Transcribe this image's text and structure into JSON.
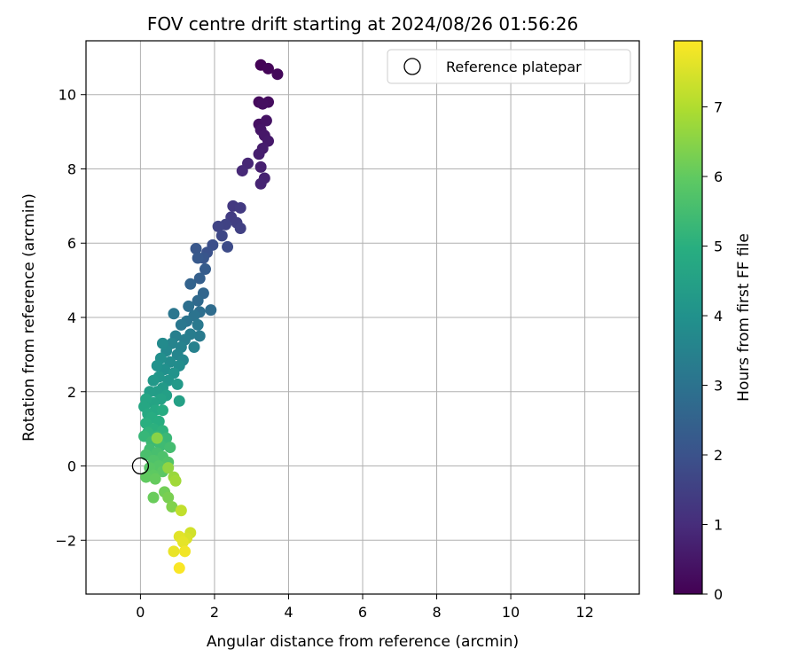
{
  "chart_data": {
    "type": "scatter",
    "title": "FOV centre drift starting at 2024/08/26 01:56:26",
    "xlabel": "Angular distance from reference (arcmin)",
    "ylabel": "Rotation from reference (arcmin)",
    "xlim": [
      -1.47,
      13.47
    ],
    "ylim": [
      -3.45,
      11.45
    ],
    "xticks": [
      0,
      2,
      4,
      6,
      8,
      10,
      12
    ],
    "yticks": [
      -2,
      0,
      2,
      4,
      6,
      8,
      10
    ],
    "xtick_labels": [
      "0",
      "2",
      "4",
      "6",
      "8",
      "10",
      "12"
    ],
    "ytick_labels": [
      "−2",
      "0",
      "2",
      "4",
      "6",
      "8",
      "10"
    ],
    "grid": true,
    "legend": {
      "placement": "top-right",
      "entries": [
        "Reference platepar"
      ]
    },
    "colorbar": {
      "label": "Hours from first FF file",
      "range": [
        0,
        7.95
      ],
      "ticks": [
        0,
        1,
        2,
        3,
        4,
        5,
        6,
        7
      ],
      "tick_labels": [
        "0",
        "1",
        "2",
        "3",
        "4",
        "5",
        "6",
        "7"
      ],
      "colormap": "viridis"
    },
    "reference_point": {
      "name": "Reference platepar",
      "x": 0,
      "y": 0
    },
    "series": [
      {
        "colored_by": "Hours from first FF file",
        "points": [
          {
            "x": 3.25,
            "y": 10.8,
            "c": 0.05
          },
          {
            "x": 3.45,
            "y": 10.7,
            "c": 0.1
          },
          {
            "x": 3.7,
            "y": 10.55,
            "c": 0.15
          },
          {
            "x": 3.2,
            "y": 9.8,
            "c": 0.2
          },
          {
            "x": 3.45,
            "y": 9.8,
            "c": 0.25
          },
          {
            "x": 3.3,
            "y": 9.75,
            "c": 0.3
          },
          {
            "x": 3.2,
            "y": 9.2,
            "c": 0.35
          },
          {
            "x": 3.4,
            "y": 9.3,
            "c": 0.4
          },
          {
            "x": 3.25,
            "y": 9.05,
            "c": 0.45
          },
          {
            "x": 3.35,
            "y": 8.9,
            "c": 0.5
          },
          {
            "x": 3.45,
            "y": 8.75,
            "c": 0.55
          },
          {
            "x": 3.3,
            "y": 8.55,
            "c": 0.6
          },
          {
            "x": 3.2,
            "y": 8.4,
            "c": 0.65
          },
          {
            "x": 3.25,
            "y": 8.05,
            "c": 0.7
          },
          {
            "x": 3.35,
            "y": 7.75,
            "c": 0.75
          },
          {
            "x": 3.25,
            "y": 7.6,
            "c": 0.8
          },
          {
            "x": 2.9,
            "y": 8.15,
            "c": 0.85
          },
          {
            "x": 2.75,
            "y": 7.95,
            "c": 0.9
          },
          {
            "x": 2.5,
            "y": 7.0,
            "c": 1.3
          },
          {
            "x": 2.7,
            "y": 6.95,
            "c": 1.35
          },
          {
            "x": 2.45,
            "y": 6.7,
            "c": 1.4
          },
          {
            "x": 2.6,
            "y": 6.55,
            "c": 1.45
          },
          {
            "x": 2.7,
            "y": 6.4,
            "c": 1.5
          },
          {
            "x": 2.3,
            "y": 6.5,
            "c": 1.55
          },
          {
            "x": 2.1,
            "y": 6.45,
            "c": 1.6
          },
          {
            "x": 2.2,
            "y": 6.2,
            "c": 1.7
          },
          {
            "x": 2.35,
            "y": 5.9,
            "c": 1.8
          },
          {
            "x": 1.95,
            "y": 5.95,
            "c": 1.9
          },
          {
            "x": 1.8,
            "y": 5.75,
            "c": 2.0
          },
          {
            "x": 1.7,
            "y": 5.6,
            "c": 2.1
          },
          {
            "x": 1.5,
            "y": 5.85,
            "c": 2.15
          },
          {
            "x": 1.55,
            "y": 5.6,
            "c": 2.2
          },
          {
            "x": 1.75,
            "y": 5.3,
            "c": 2.3
          },
          {
            "x": 1.6,
            "y": 5.05,
            "c": 2.4
          },
          {
            "x": 1.35,
            "y": 4.9,
            "c": 2.5
          },
          {
            "x": 1.7,
            "y": 4.65,
            "c": 2.6
          },
          {
            "x": 1.55,
            "y": 4.45,
            "c": 2.7
          },
          {
            "x": 1.9,
            "y": 4.2,
            "c": 2.8
          },
          {
            "x": 1.6,
            "y": 4.15,
            "c": 2.85
          },
          {
            "x": 1.3,
            "y": 4.3,
            "c": 2.9
          },
          {
            "x": 1.45,
            "y": 4.05,
            "c": 3.0
          },
          {
            "x": 1.25,
            "y": 3.9,
            "c": 3.05
          },
          {
            "x": 0.9,
            "y": 4.1,
            "c": 3.1
          },
          {
            "x": 1.1,
            "y": 3.8,
            "c": 3.15
          },
          {
            "x": 1.55,
            "y": 3.8,
            "c": 3.2
          },
          {
            "x": 1.6,
            "y": 3.5,
            "c": 3.25
          },
          {
            "x": 1.35,
            "y": 3.55,
            "c": 3.3
          },
          {
            "x": 1.2,
            "y": 3.4,
            "c": 3.35
          },
          {
            "x": 0.95,
            "y": 3.5,
            "c": 3.4
          },
          {
            "x": 1.45,
            "y": 3.2,
            "c": 3.45
          },
          {
            "x": 1.1,
            "y": 3.2,
            "c": 3.5
          },
          {
            "x": 0.85,
            "y": 3.3,
            "c": 3.55
          },
          {
            "x": 1.0,
            "y": 3.0,
            "c": 3.6
          },
          {
            "x": 1.15,
            "y": 2.85,
            "c": 3.65
          },
          {
            "x": 0.7,
            "y": 3.1,
            "c": 3.7
          },
          {
            "x": 0.6,
            "y": 3.3,
            "c": 3.75
          },
          {
            "x": 0.8,
            "y": 2.8,
            "c": 3.8
          },
          {
            "x": 1.05,
            "y": 2.7,
            "c": 3.85
          },
          {
            "x": 0.55,
            "y": 2.9,
            "c": 3.9
          },
          {
            "x": 0.65,
            "y": 2.6,
            "c": 3.95
          },
          {
            "x": 0.45,
            "y": 2.7,
            "c": 4.0
          },
          {
            "x": 0.9,
            "y": 2.5,
            "c": 4.05
          },
          {
            "x": 0.75,
            "y": 2.3,
            "c": 4.1
          },
          {
            "x": 0.5,
            "y": 2.4,
            "c": 4.15
          },
          {
            "x": 0.35,
            "y": 2.3,
            "c": 4.2
          },
          {
            "x": 1.0,
            "y": 2.2,
            "c": 4.25
          },
          {
            "x": 0.6,
            "y": 2.1,
            "c": 4.3
          },
          {
            "x": 0.45,
            "y": 2.0,
            "c": 4.35
          },
          {
            "x": 0.25,
            "y": 2.0,
            "c": 4.4
          },
          {
            "x": 0.7,
            "y": 1.9,
            "c": 4.45
          },
          {
            "x": 1.05,
            "y": 1.75,
            "c": 4.5
          },
          {
            "x": 0.55,
            "y": 1.8,
            "c": 4.55
          },
          {
            "x": 0.35,
            "y": 1.7,
            "c": 4.6
          },
          {
            "x": 0.15,
            "y": 1.8,
            "c": 4.65
          },
          {
            "x": 0.1,
            "y": 1.6,
            "c": 4.7
          },
          {
            "x": 0.4,
            "y": 1.5,
            "c": 4.75
          },
          {
            "x": 0.2,
            "y": 1.4,
            "c": 4.8
          },
          {
            "x": 0.6,
            "y": 1.5,
            "c": 4.85
          },
          {
            "x": 0.3,
            "y": 1.3,
            "c": 4.9
          },
          {
            "x": 0.5,
            "y": 1.2,
            "c": 4.95
          },
          {
            "x": 0.15,
            "y": 1.15,
            "c": 5.0
          },
          {
            "x": 0.35,
            "y": 1.0,
            "c": 5.05
          },
          {
            "x": 0.6,
            "y": 0.95,
            "c": 5.1
          },
          {
            "x": 0.2,
            "y": 0.9,
            "c": 5.15
          },
          {
            "x": 0.45,
            "y": 0.8,
            "c": 5.2
          },
          {
            "x": 0.1,
            "y": 0.8,
            "c": 5.25
          },
          {
            "x": 0.7,
            "y": 0.75,
            "c": 5.3
          },
          {
            "x": 0.3,
            "y": 0.65,
            "c": 5.35
          },
          {
            "x": 0.55,
            "y": 0.55,
            "c": 5.4
          },
          {
            "x": 0.25,
            "y": 0.45,
            "c": 5.45
          },
          {
            "x": 0.8,
            "y": 0.5,
            "c": 5.5
          },
          {
            "x": 0.45,
            "y": 0.35,
            "c": 5.55
          },
          {
            "x": 0.15,
            "y": 0.3,
            "c": 5.6
          },
          {
            "x": 0.6,
            "y": 0.25,
            "c": 5.65
          },
          {
            "x": 0.35,
            "y": 0.15,
            "c": 5.7
          },
          {
            "x": 0.75,
            "y": 0.1,
            "c": 5.75
          },
          {
            "x": 0.5,
            "y": 0.0,
            "c": 5.8
          },
          {
            "x": 0.25,
            "y": -0.05,
            "c": 5.85
          },
          {
            "x": 0.6,
            "y": -0.15,
            "c": 5.9
          },
          {
            "x": 0.35,
            "y": -0.25,
            "c": 5.95
          },
          {
            "x": 0.15,
            "y": -0.3,
            "c": 6.0
          },
          {
            "x": 0.4,
            "y": -0.35,
            "c": 6.05
          },
          {
            "x": 0.35,
            "y": -0.85,
            "c": 6.1
          },
          {
            "x": 0.65,
            "y": -0.7,
            "c": 6.2
          },
          {
            "x": 0.75,
            "y": -0.85,
            "c": 6.3
          },
          {
            "x": 0.85,
            "y": -1.1,
            "c": 6.4
          },
          {
            "x": 0.45,
            "y": 0.75,
            "c": 6.5
          },
          {
            "x": 0.75,
            "y": -0.05,
            "c": 6.6
          },
          {
            "x": 0.9,
            "y": -0.3,
            "c": 6.7
          },
          {
            "x": 0.95,
            "y": -0.4,
            "c": 6.8
          },
          {
            "x": 1.1,
            "y": -1.2,
            "c": 7.2
          },
          {
            "x": 1.35,
            "y": -1.8,
            "c": 7.4
          },
          {
            "x": 1.25,
            "y": -1.95,
            "c": 7.5
          },
          {
            "x": 1.05,
            "y": -1.9,
            "c": 7.6
          },
          {
            "x": 1.15,
            "y": -2.05,
            "c": 7.65
          },
          {
            "x": 0.9,
            "y": -2.3,
            "c": 7.7
          },
          {
            "x": 1.2,
            "y": -2.3,
            "c": 7.8
          },
          {
            "x": 1.05,
            "y": -2.75,
            "c": 7.9
          }
        ]
      }
    ]
  }
}
